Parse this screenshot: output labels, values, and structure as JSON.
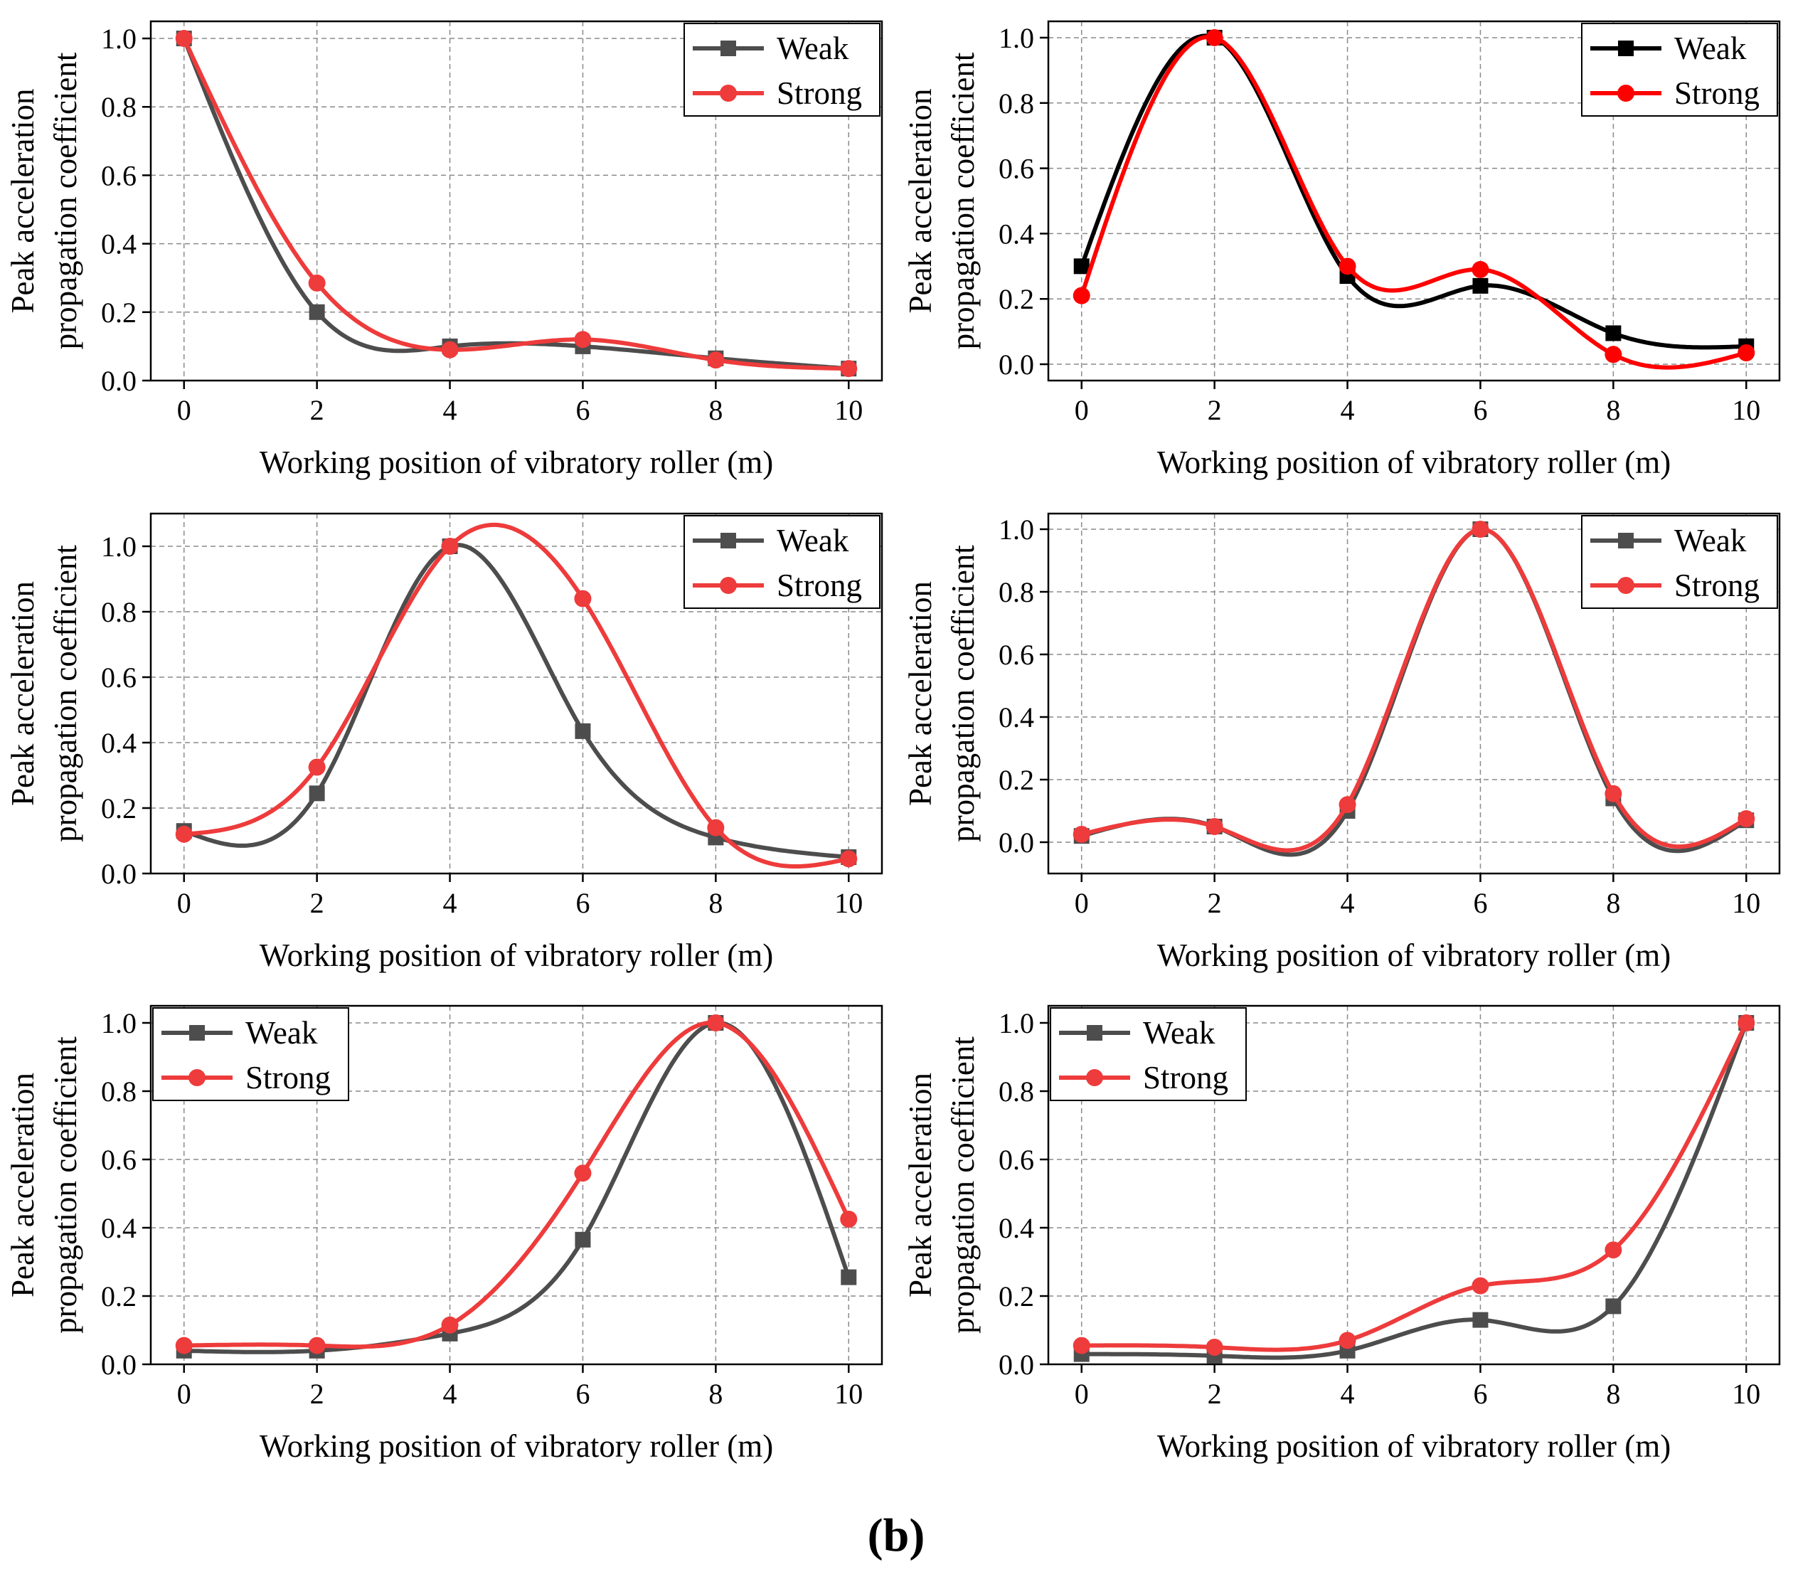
{
  "figure": {
    "caption": "(b)"
  },
  "chart_data": [
    {
      "type": "line",
      "xlabel": "Working position of vibratory roller (m)",
      "ylabel": [
        "Peak acceleration",
        "propagation coefficient"
      ],
      "xlim": [
        -0.5,
        10.5
      ],
      "ylim": [
        0,
        1.05
      ],
      "xticks": [
        0,
        2,
        4,
        6,
        8,
        10
      ],
      "yticks": [
        0,
        0.2,
        0.4,
        0.6,
        0.8,
        1.0
      ],
      "ytick_labels": [
        "0.0",
        "0.2",
        "0.4",
        "0.6",
        "0.8",
        "1.0"
      ],
      "grid": true,
      "legend_position": "top-right",
      "series": [
        {
          "name": "Weak",
          "marker": "square",
          "color": "#4d4d4d",
          "x": [
            0,
            2,
            4,
            6,
            8,
            10
          ],
          "values": [
            1.0,
            0.2,
            0.1,
            0.1,
            0.065,
            0.035
          ]
        },
        {
          "name": "Strong",
          "marker": "circle",
          "color": "#ee3b3b",
          "x": [
            0,
            2,
            4,
            6,
            8,
            10
          ],
          "values": [
            1.0,
            0.285,
            0.09,
            0.12,
            0.06,
            0.035
          ]
        }
      ]
    },
    {
      "type": "line",
      "xlabel": "Working position of vibratory roller (m)",
      "ylabel": [
        "Peak acceleration",
        "propagation coefficient"
      ],
      "xlim": [
        -0.5,
        10.5
      ],
      "ylim": [
        -0.05,
        1.05
      ],
      "xticks": [
        0,
        2,
        4,
        6,
        8,
        10
      ],
      "yticks": [
        0,
        0.2,
        0.4,
        0.6,
        0.8,
        1.0
      ],
      "ytick_labels": [
        "0.0",
        "0.2",
        "0.4",
        "0.6",
        "0.8",
        "1.0"
      ],
      "grid": true,
      "legend_position": "top-right",
      "series": [
        {
          "name": "Weak",
          "marker": "square",
          "color": "#000000",
          "x": [
            0,
            2,
            4,
            6,
            8,
            10
          ],
          "values": [
            0.3,
            1.0,
            0.27,
            0.24,
            0.095,
            0.055
          ]
        },
        {
          "name": "Strong",
          "marker": "circle",
          "color": "#ff0000",
          "x": [
            0,
            2,
            4,
            6,
            8,
            10
          ],
          "values": [
            0.21,
            1.0,
            0.3,
            0.29,
            0.03,
            0.035
          ]
        }
      ]
    },
    {
      "type": "line",
      "xlabel": "Working position of vibratory roller (m)",
      "ylabel": [
        "Peak acceleration",
        "propagation coefficient"
      ],
      "xlim": [
        -0.5,
        10.5
      ],
      "ylim": [
        0,
        1.1
      ],
      "xticks": [
        0,
        2,
        4,
        6,
        8,
        10
      ],
      "yticks": [
        0,
        0.2,
        0.4,
        0.6,
        0.8,
        1.0
      ],
      "ytick_labels": [
        "0.0",
        "0.2",
        "0.4",
        "0.6",
        "0.8",
        "1.0"
      ],
      "grid": true,
      "legend_position": "top-right",
      "series": [
        {
          "name": "Weak",
          "marker": "square",
          "color": "#4d4d4d",
          "x": [
            0,
            2,
            4,
            6,
            8,
            10
          ],
          "values": [
            0.13,
            0.245,
            1.0,
            0.435,
            0.11,
            0.05
          ]
        },
        {
          "name": "Strong",
          "marker": "circle",
          "color": "#ee3b3b",
          "x": [
            0,
            2,
            4,
            6,
            8,
            10
          ],
          "values": [
            0.12,
            0.325,
            1.0,
            0.84,
            0.14,
            0.045
          ]
        }
      ]
    },
    {
      "type": "line",
      "xlabel": "Working position of vibratory roller (m)",
      "ylabel": [
        "Peak acceleration",
        "propagation coefficient"
      ],
      "xlim": [
        -0.5,
        10.5
      ],
      "ylim": [
        -0.1,
        1.05
      ],
      "xticks": [
        0,
        2,
        4,
        6,
        8,
        10
      ],
      "yticks": [
        0,
        0.2,
        0.4,
        0.6,
        0.8,
        1.0
      ],
      "ytick_labels": [
        "0.0",
        "0.2",
        "0.4",
        "0.6",
        "0.8",
        "1.0"
      ],
      "grid": true,
      "legend_position": "top-right",
      "series": [
        {
          "name": "Weak",
          "marker": "square",
          "color": "#4d4d4d",
          "x": [
            0,
            2,
            4,
            6,
            8,
            10
          ],
          "values": [
            0.02,
            0.05,
            0.1,
            1.0,
            0.14,
            0.07
          ]
        },
        {
          "name": "Strong",
          "marker": "circle",
          "color": "#ee3b3b",
          "x": [
            0,
            2,
            4,
            6,
            8,
            10
          ],
          "values": [
            0.025,
            0.05,
            0.12,
            1.0,
            0.155,
            0.075
          ]
        }
      ]
    },
    {
      "type": "line",
      "xlabel": "Working position of vibratory roller (m)",
      "ylabel": [
        "Peak acceleration",
        "propagation coefficient"
      ],
      "xlim": [
        -0.5,
        10.5
      ],
      "ylim": [
        0,
        1.05
      ],
      "xticks": [
        0,
        2,
        4,
        6,
        8,
        10
      ],
      "yticks": [
        0,
        0.2,
        0.4,
        0.6,
        0.8,
        1.0
      ],
      "ytick_labels": [
        "0.0",
        "0.2",
        "0.4",
        "0.6",
        "0.8",
        "1.0"
      ],
      "grid": true,
      "legend_position": "top-left",
      "series": [
        {
          "name": "Weak",
          "marker": "square",
          "color": "#4d4d4d",
          "x": [
            0,
            2,
            4,
            6,
            8,
            10
          ],
          "values": [
            0.04,
            0.04,
            0.09,
            0.365,
            1.0,
            0.255
          ]
        },
        {
          "name": "Strong",
          "marker": "circle",
          "color": "#ee3b3b",
          "x": [
            0,
            2,
            4,
            6,
            8,
            10
          ],
          "values": [
            0.055,
            0.055,
            0.115,
            0.56,
            1.0,
            0.425
          ]
        }
      ]
    },
    {
      "type": "line",
      "xlabel": "Working position of vibratory roller (m)",
      "ylabel": [
        "Peak acceleration",
        "propagation coefficient"
      ],
      "xlim": [
        -0.5,
        10.5
      ],
      "ylim": [
        0,
        1.05
      ],
      "xticks": [
        0,
        2,
        4,
        6,
        8,
        10
      ],
      "yticks": [
        0,
        0.2,
        0.4,
        0.6,
        0.8,
        1.0
      ],
      "ytick_labels": [
        "0.0",
        "0.2",
        "0.4",
        "0.6",
        "0.8",
        "1.0"
      ],
      "grid": true,
      "legend_position": "top-left",
      "series": [
        {
          "name": "Weak",
          "marker": "square",
          "color": "#4d4d4d",
          "x": [
            0,
            2,
            4,
            6,
            8,
            10
          ],
          "values": [
            0.03,
            0.025,
            0.04,
            0.13,
            0.17,
            1.0
          ]
        },
        {
          "name": "Strong",
          "marker": "circle",
          "color": "#ee3b3b",
          "x": [
            0,
            2,
            4,
            6,
            8,
            10
          ],
          "values": [
            0.055,
            0.05,
            0.07,
            0.23,
            0.335,
            1.0
          ]
        }
      ]
    }
  ]
}
